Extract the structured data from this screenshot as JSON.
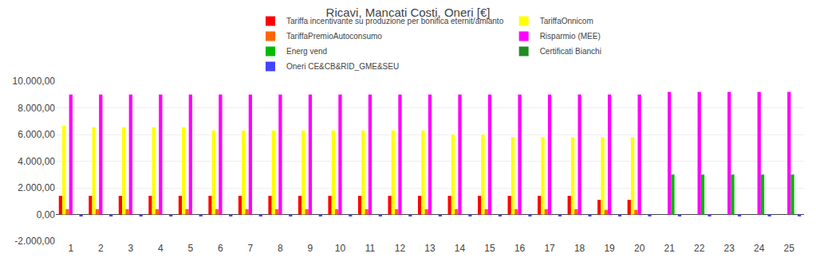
{
  "chart_data": {
    "type": "bar",
    "title": "Ricavi, Mancati Costi, Oneri [€]",
    "categories": [
      1,
      2,
      3,
      4,
      5,
      6,
      7,
      8,
      9,
      10,
      11,
      12,
      13,
      14,
      15,
      16,
      17,
      18,
      19,
      20,
      21,
      22,
      23,
      24,
      25
    ],
    "series": [
      {
        "name": "Tariffa incentivante su produzione per bonifica eternit/amianto",
        "color": "#ff0000",
        "values": [
          1400,
          1400,
          1400,
          1400,
          1400,
          1400,
          1400,
          1400,
          1400,
          1400,
          1400,
          1400,
          1400,
          1400,
          1400,
          1400,
          1400,
          1400,
          1100,
          1100,
          0,
          0,
          0,
          0,
          0
        ]
      },
      {
        "name": "TariffaOnnicom",
        "color": "#ffff00",
        "values": [
          6650,
          6550,
          6550,
          6550,
          6550,
          6300,
          6300,
          6300,
          6300,
          6300,
          6300,
          6300,
          6300,
          6000,
          6000,
          5800,
          5800,
          5800,
          5800,
          5800,
          0,
          0,
          0,
          0,
          0
        ]
      },
      {
        "name": "TariffaPremioAutoconsumo",
        "color": "#ff6600",
        "values": [
          400,
          400,
          400,
          400,
          400,
          400,
          400,
          400,
          400,
          400,
          400,
          400,
          400,
          400,
          400,
          400,
          400,
          400,
          350,
          350,
          0,
          0,
          0,
          0,
          0
        ]
      },
      {
        "name": "Risparmio (MEE)",
        "color": "#ff00ff",
        "values": [
          9000,
          9000,
          9000,
          9000,
          9000,
          9000,
          9000,
          9000,
          9000,
          9000,
          9000,
          9000,
          9000,
          9000,
          9000,
          9000,
          9000,
          9000,
          9000,
          9000,
          9200,
          9200,
          9200,
          9200,
          9200
        ]
      },
      {
        "name": "Energ vend",
        "color": "#00bb00",
        "values": [
          0,
          0,
          0,
          0,
          0,
          0,
          0,
          0,
          0,
          0,
          0,
          0,
          0,
          0,
          0,
          0,
          0,
          0,
          0,
          0,
          3000,
          3000,
          3000,
          3000,
          3000
        ]
      },
      {
        "name": "Certificati Bianchi",
        "color": "#228b22",
        "values": [
          0,
          0,
          0,
          0,
          0,
          0,
          0,
          0,
          0,
          0,
          0,
          0,
          0,
          0,
          0,
          0,
          0,
          0,
          0,
          0,
          0,
          0,
          0,
          0,
          0
        ]
      },
      {
        "name": "Oneri CE&CB&RID_GME&SEU",
        "color": "#4444ff",
        "values": [
          -150,
          -150,
          -150,
          -150,
          -150,
          -150,
          -150,
          -150,
          -150,
          -150,
          -150,
          -150,
          -150,
          -150,
          -150,
          -150,
          -150,
          -150,
          -150,
          -150,
          -150,
          -150,
          -150,
          -150,
          -150
        ]
      }
    ],
    "ylim": [
      -2000,
      10000
    ],
    "yticks": [
      {
        "value": -2000,
        "label": "-2.000,00"
      },
      {
        "value": 0,
        "label": "0,00"
      },
      {
        "value": 2000,
        "label": "2.000,00"
      },
      {
        "value": 4000,
        "label": "4.000,00"
      },
      {
        "value": 6000,
        "label": "6.000,00"
      },
      {
        "value": 8000,
        "label": "8.000,00"
      },
      {
        "value": 10000,
        "label": "10.000,00"
      }
    ],
    "grid": true,
    "legend": "top"
  }
}
